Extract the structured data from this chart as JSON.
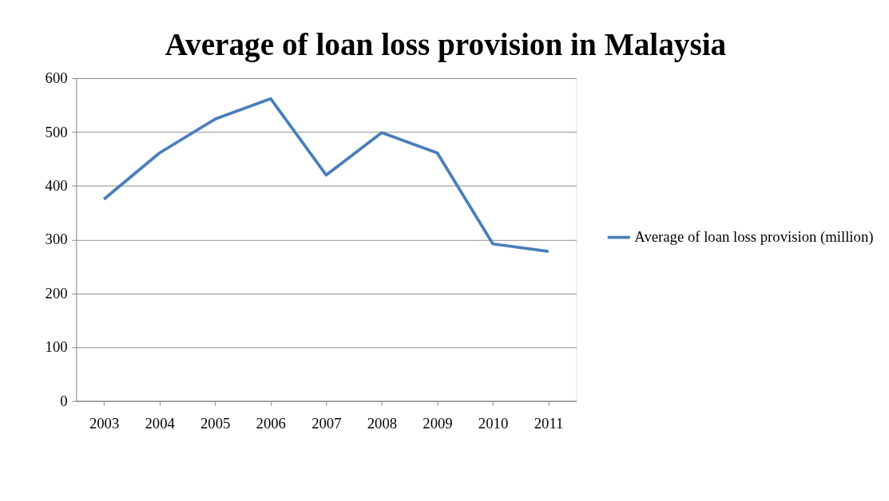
{
  "chart_data": {
    "type": "line",
    "title": "Average of loan loss provision in Malaysia",
    "categories": [
      "2003",
      "2004",
      "2005",
      "2006",
      "2007",
      "2008",
      "2009",
      "2010",
      "2011"
    ],
    "series": [
      {
        "name": "Average of loan loss provision (million)",
        "color": "#4a7ebb",
        "values": [
          375,
          461,
          524,
          562,
          420,
          499,
          461,
          292,
          278
        ]
      }
    ],
    "ylim": [
      0,
      600
    ],
    "yticks": [
      0,
      100,
      200,
      300,
      400,
      500,
      600
    ],
    "grid": "y",
    "legend": "right",
    "marker": "none",
    "line_style": "solid"
  }
}
